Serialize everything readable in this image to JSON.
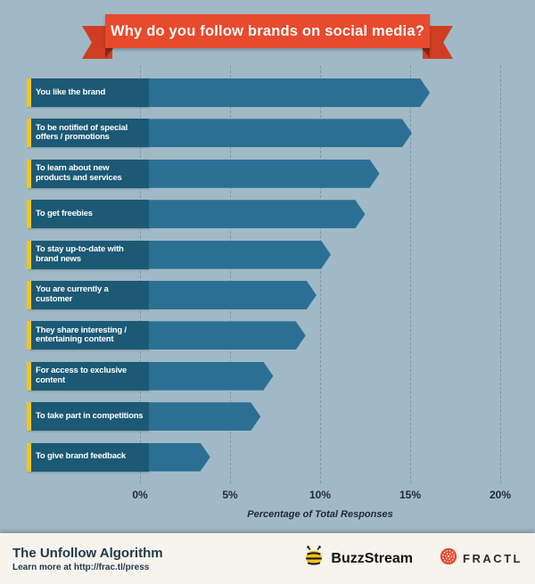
{
  "banner": {
    "title": "Why do you follow brands on social media?",
    "ribbon_color": "#e74a2d"
  },
  "chart_data": {
    "type": "bar",
    "orientation": "horizontal",
    "title": "Why do you follow brands on social media?",
    "categories": [
      "You like the brand",
      "To be notified of special offers / promotions",
      "To learn about new products and services",
      "To get freebies",
      "To stay up-to-date with brand news",
      "You are currently a customer",
      "They share interesting / entertaining content",
      "For access to exclusive content",
      "To take part in competitions",
      "To give brand feedback"
    ],
    "values": [
      15.6,
      14.6,
      12.8,
      12.0,
      10.1,
      9.3,
      8.7,
      6.9,
      6.2,
      3.4
    ],
    "xlabel": "Percentage of Total Responses",
    "xlim": [
      0,
      20
    ],
    "tick_labels": [
      "0%",
      "5%",
      "10%",
      "15%",
      "20%"
    ],
    "tick_values": [
      0,
      5,
      10,
      15,
      20
    ],
    "grid": true,
    "bar_color": "#2b7094",
    "label_box_color": "#1c5974",
    "accent_color": "#f2c51c",
    "background_color": "#a1b9c6"
  },
  "footer": {
    "title": "The Unfollow Algorithm",
    "subtitle": "Learn more at http://frac.tl/press",
    "logos": [
      {
        "label": "BuzzStream",
        "icon": "bee-icon",
        "color": "#f5c31d"
      },
      {
        "label": "FRACTL",
        "icon": "fractl-mark-icon",
        "color": "#e8482b"
      }
    ]
  }
}
